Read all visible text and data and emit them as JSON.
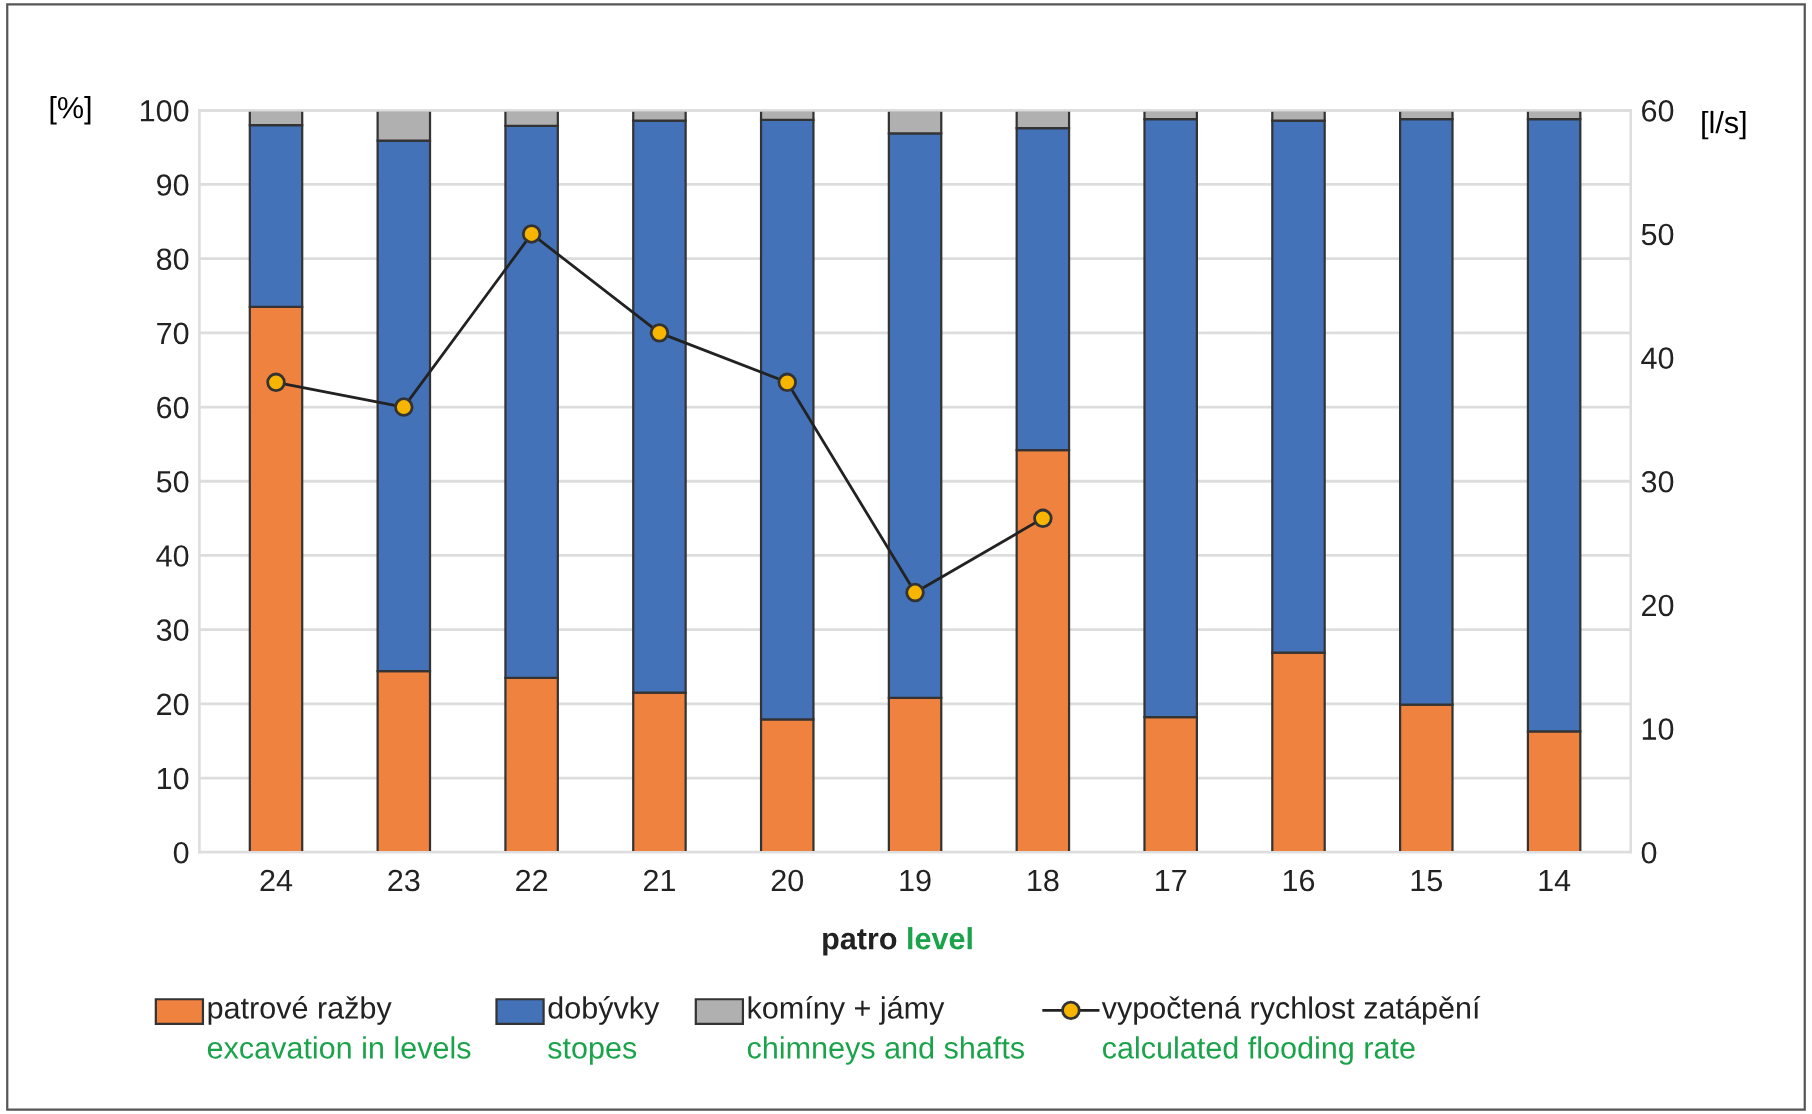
{
  "chart_data": {
    "type": "bar",
    "stacked": true,
    "xlabel": "patro level",
    "ylabel": "[%]",
    "y2label": "[l/s]",
    "categories": [
      "24",
      "23",
      "22",
      "21",
      "20",
      "19",
      "18",
      "17",
      "16",
      "15",
      "14"
    ],
    "series": [
      {
        "name": "patrové ražby\nexcavation in levels",
        "color": "#f08240",
        "values": [
          73.5,
          24.4,
          23.5,
          21.5,
          17.9,
          20.8,
          54.2,
          18.2,
          26.9,
          19.9,
          16.3
        ]
      },
      {
        "name": "dobývky\nstopes",
        "color": "#4472b8",
        "values": [
          24.5,
          71.5,
          74.4,
          77.1,
          80.8,
          76.1,
          43.4,
          80.6,
          71.7,
          78.9,
          82.5
        ]
      },
      {
        "name": "komíny + jámy\nchimneys and shafts",
        "color": "#b0b0b0",
        "values": [
          2.0,
          4.1,
          2.1,
          1.4,
          1.3,
          3.1,
          2.4,
          1.2,
          1.4,
          1.2,
          1.2
        ]
      },
      {
        "name": "vypočtená rychlost zatápění\ncalculated flooding rate",
        "type": "line",
        "axis": "y2",
        "color": "#222222",
        "marker": "circle",
        "values": [
          38,
          36,
          50,
          42,
          38,
          21,
          27,
          null,
          null,
          null,
          null
        ]
      }
    ],
    "ylim": [
      0,
      100
    ],
    "yticks": [
      0,
      10,
      20,
      30,
      40,
      50,
      60,
      70,
      80,
      90,
      100
    ],
    "y2lim": [
      0,
      60
    ],
    "y2ticks": [
      0,
      10,
      20,
      30,
      40,
      50,
      60
    ],
    "grid": "y",
    "legend": "bottom"
  }
}
